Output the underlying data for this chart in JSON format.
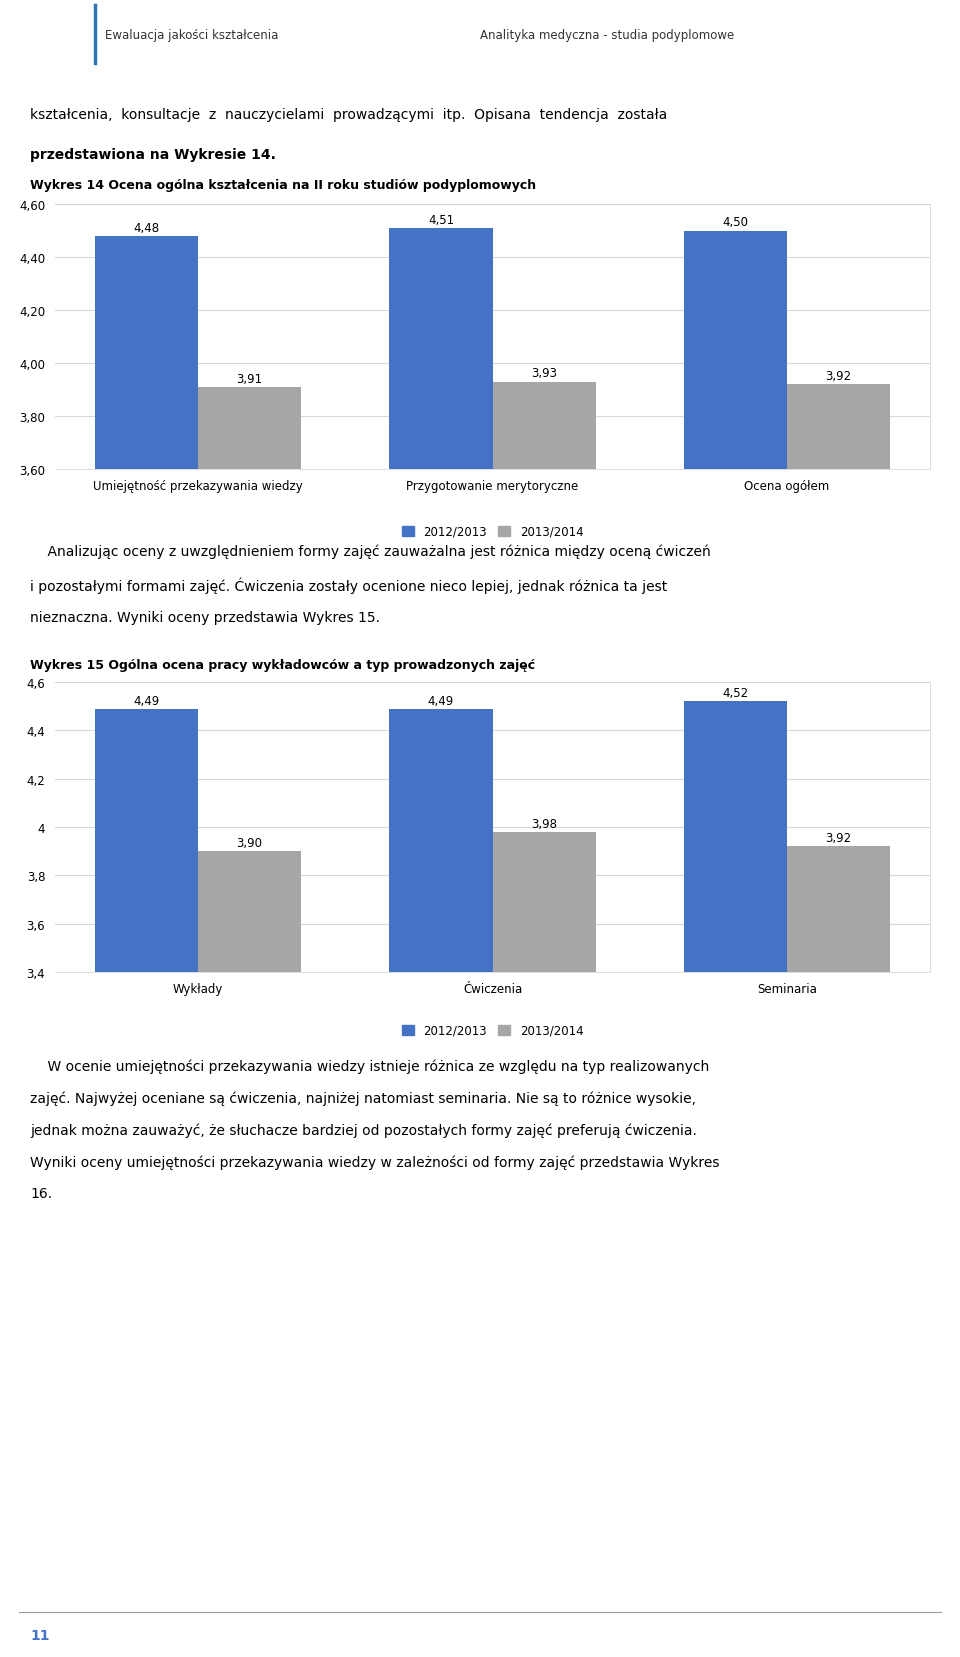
{
  "page_bg": "#ffffff",
  "header_left": "Ewaluacja jakości kształcenia",
  "header_right": "Analityka medyczna - studia podyplomowe",
  "header_line_color": "#2e75b6",
  "page_number": "11",
  "intro_text_line1": "kształcenia,  konsultacje  z  nauczycielami  prowadzącymi  itp.  Opisana  tendencja  została",
  "intro_text_line2": "przedstawiona na Wykresie 14.",
  "chart1_title": "Wykres 14 Ocena ogólna kształcenia na II roku studiów podyplomowych",
  "chart1_categories": [
    "Umiejętność przekazywania wiedzy",
    "Przygotowanie merytoryczne",
    "Ocena ogółem"
  ],
  "chart1_series1_values": [
    4.48,
    4.51,
    4.5
  ],
  "chart1_series2_values": [
    3.91,
    3.93,
    3.92
  ],
  "chart1_ylim": [
    3.6,
    4.6
  ],
  "chart1_yticks": [
    3.6,
    3.8,
    4.0,
    4.2,
    4.4,
    4.6
  ],
  "chart1_legend": [
    "2012/2013",
    "2013/2014"
  ],
  "middle_text_line1": "    Analizując oceny z uwzględnieniem formy zajęć zauważalna jest różnica między oceną ćwiczeń",
  "middle_text_line2": "i pozostałymi formami zajęć. Ćwiczenia zostały ocenione nieco lepiej, jednak różnica ta jest",
  "middle_text_line3": "nieznaczna. Wyniki oceny przedstawia Wykres 15.",
  "chart2_title": "Wykres 15 Ogólna ocena pracy wykładowców a typ prowadzonych zajęć",
  "chart2_categories": [
    "Wykłady",
    "Ćwiczenia",
    "Seminaria"
  ],
  "chart2_series1_values": [
    4.49,
    4.49,
    4.52
  ],
  "chart2_series2_values": [
    3.9,
    3.98,
    3.92
  ],
  "chart2_ylim": [
    3.4,
    4.6
  ],
  "chart2_yticks": [
    3.4,
    3.6,
    3.8,
    4.0,
    4.2,
    4.4,
    4.6
  ],
  "chart2_legend": [
    "2012/2013",
    "2013/2014"
  ],
  "bottom_text_lines": [
    "    W ocenie umiejętności przekazywania wiedzy istnieje różnica ze względu na typ realizowanych",
    "zajęć. Najwyżej oceniane są ćwiczenia, najniżej natomiast seminaria. Nie są to różnice wysokie,",
    "jednak można zauważyć, że słuchacze bardziej od pozostałych formy zajęć preferują ćwiczenia.",
    "Wyniki oceny umiejętności przekazywania wiedzy w zależności od formy zajęć przedstawia Wykres",
    "16."
  ],
  "blue_color": "#4472c4",
  "gray_color": "#a6a6a6",
  "bar_width": 0.35,
  "chart_bg": "#ffffff",
  "grid_color": "#d9d9d9",
  "text_color": "#000000",
  "title_color": "#000000",
  "fig_width": 9.6,
  "fig_height": 16.58,
  "dpi": 100
}
